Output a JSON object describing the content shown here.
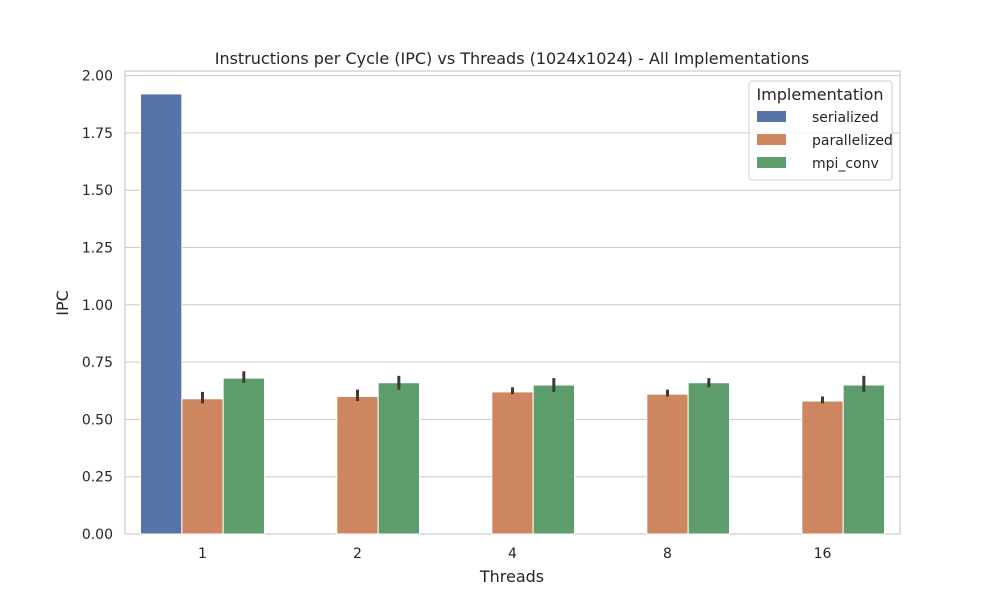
{
  "chart_data": {
    "type": "bar",
    "title": "Instructions per Cycle (IPC) vs Threads (1024x1024) - All Implementations",
    "xlabel": "Threads",
    "ylabel": "IPC",
    "categories": [
      "1",
      "2",
      "4",
      "8",
      "16"
    ],
    "ylim": [
      0,
      2.02
    ],
    "yticks": [
      "0.00",
      "0.25",
      "0.50",
      "0.75",
      "1.00",
      "1.25",
      "1.50",
      "1.75",
      "2.00"
    ],
    "grid": true,
    "legend": {
      "title": "Implementation",
      "placement": "top-right"
    },
    "series": [
      {
        "name": "serialized",
        "color": "#5874a6",
        "values": [
          1.92,
          null,
          null,
          null,
          null
        ],
        "error_low": [
          null,
          null,
          null,
          null,
          null
        ],
        "error_high": [
          null,
          null,
          null,
          null,
          null
        ]
      },
      {
        "name": "parallelized",
        "color": "#cd8660",
        "values": [
          0.59,
          0.6,
          0.62,
          0.61,
          0.58
        ],
        "error_low": [
          0.57,
          0.58,
          0.61,
          0.6,
          0.57
        ],
        "error_high": [
          0.62,
          0.63,
          0.64,
          0.63,
          0.6
        ]
      },
      {
        "name": "mpi_conv",
        "color": "#5d9d6c",
        "values": [
          0.68,
          0.66,
          0.65,
          0.66,
          0.65
        ],
        "error_low": [
          0.66,
          0.63,
          0.62,
          0.64,
          0.62
        ],
        "error_high": [
          0.71,
          0.69,
          0.68,
          0.68,
          0.69
        ]
      }
    ]
  }
}
